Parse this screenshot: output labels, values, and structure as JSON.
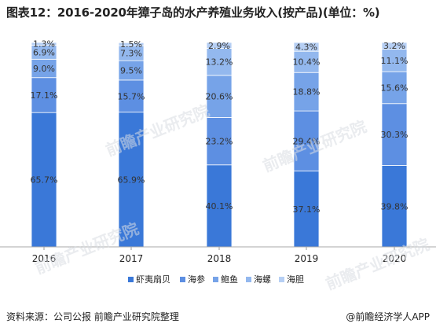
{
  "page": {
    "title": "图表12：2016-2020年獐子岛的水产养殖业务收入(按产品)(单位：%)",
    "source": "资料来源：公司公报 前瞻产业研究院整理",
    "credit": "@前瞻经济学人APP",
    "watermark": "前瞻产业研究院"
  },
  "chart_data": {
    "type": "bar",
    "stacked": true,
    "orientation": "vertical",
    "categories": [
      "2016",
      "2017",
      "2018",
      "2019",
      "2020"
    ],
    "series": [
      {
        "name": "虾夷扇贝",
        "color": "#3a78d8",
        "values": [
          65.7,
          65.9,
          40.1,
          37.1,
          39.8
        ],
        "labels": [
          "65.7%",
          "65.9%",
          "40.1%",
          "37.1%",
          "39.8%"
        ]
      },
      {
        "name": "海参",
        "color": "#5d8fe2",
        "values": [
          17.1,
          15.7,
          23.2,
          29.4,
          30.3
        ],
        "labels": [
          "17.1%",
          "15.7%",
          "23.2%",
          "29.4%",
          "30.3%"
        ]
      },
      {
        "name": "鲍鱼",
        "color": "#76a3e8",
        "values": [
          9.0,
          9.5,
          20.6,
          18.8,
          15.6
        ],
        "labels": [
          "9.0%",
          "9.5%",
          "20.6%",
          "18.8%",
          "15.6%"
        ]
      },
      {
        "name": "海螺",
        "color": "#93b8ee",
        "values": [
          6.9,
          7.3,
          13.2,
          10.4,
          11.1
        ],
        "labels": [
          "6.9%",
          "7.3%",
          "13.2%",
          "10.4%",
          "11.1%"
        ]
      },
      {
        "name": "海胆",
        "color": "#b6cff4",
        "values": [
          1.3,
          1.5,
          2.9,
          4.3,
          3.2
        ],
        "labels": [
          "1.3%",
          "1.5%",
          "2.9%",
          "4.3%",
          "3.2%"
        ]
      }
    ],
    "ylim": [
      0,
      100
    ],
    "grid": false,
    "legend": "bottom"
  }
}
